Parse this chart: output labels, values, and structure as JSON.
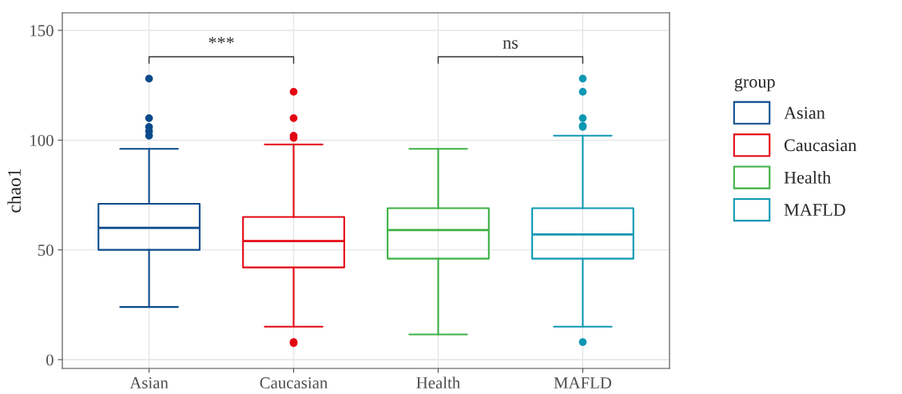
{
  "chart_data": {
    "type": "box",
    "ylabel": "chao1",
    "legend_title": "group",
    "categories": [
      "Asian",
      "Caucasian",
      "Health",
      "MAFLD"
    ],
    "series": [
      {
        "name": "Asian",
        "color": "#0b4a8b",
        "boxes": [
          {
            "low": 24,
            "q1": 50,
            "median": 60,
            "q3": 71,
            "high": 96,
            "outliers": [
              128,
              110,
              106,
              104,
              102
            ]
          },
          null,
          null,
          null
        ]
      },
      {
        "name": "Caucasian",
        "color": "#e30613",
        "boxes": [
          null,
          {
            "low": 15,
            "q1": 42,
            "median": 54,
            "q3": 65,
            "high": 98,
            "outliers": [
              122,
              110,
              102,
              101,
              8,
              7.5
            ]
          },
          null,
          null
        ]
      },
      {
        "name": "Health",
        "color": "#3cb043",
        "boxes": [
          null,
          null,
          {
            "low": 11.5,
            "q1": 46,
            "median": 59,
            "q3": 69,
            "high": 96
          },
          null
        ]
      },
      {
        "name": "MAFLD",
        "color": "#0e98b3",
        "boxes": [
          null,
          null,
          null,
          {
            "low": 15,
            "q1": 46,
            "median": 57,
            "q3": 69,
            "high": 102,
            "outliers": [
              128,
              122,
              110,
              106.5,
              106,
              8
            ]
          }
        ]
      }
    ],
    "annotations": [
      "***",
      "ns"
    ],
    "ylim": [
      -4,
      158
    ],
    "yticks": [
      0,
      50,
      100,
      150
    ],
    "grid": true,
    "legend": "right"
  }
}
